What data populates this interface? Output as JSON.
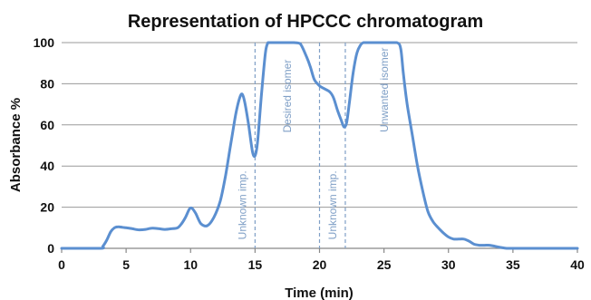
{
  "chart_data": {
    "type": "line",
    "title": "Representation of HPCCC chromatogram",
    "xlabel": "Time (min)",
    "ylabel": "Absorbance %",
    "xlim": [
      0,
      40
    ],
    "ylim": [
      0,
      100
    ],
    "x_ticks": [
      0,
      5,
      10,
      15,
      20,
      25,
      30,
      35,
      40
    ],
    "y_ticks": [
      0,
      20,
      40,
      60,
      80,
      100
    ],
    "grid": "horizontal",
    "colors": {
      "series": "#5b8fd0",
      "annotation": "#7f9fc6"
    },
    "series": [
      {
        "x": [
          0,
          3,
          3.2,
          3.5,
          3.8,
          4.1,
          4.4,
          4.7,
          5,
          5.5,
          6,
          6.5,
          7,
          7.5,
          8,
          8.5,
          9,
          9.3,
          9.6,
          9.9,
          10.1,
          10.4,
          10.8,
          11.3,
          11.8,
          12.3,
          12.7,
          13.1,
          13.5,
          13.8,
          14,
          14.2,
          14.5,
          14.8,
          15,
          15.2,
          15.5,
          15.8,
          16,
          16.1,
          16.5,
          17,
          17.5,
          18,
          18.5,
          19,
          19.3,
          19.6,
          20,
          20.4,
          20.8,
          21.1,
          21.4,
          21.7,
          21.9,
          22.1,
          22.3,
          22.6,
          22.9,
          23.2,
          23.4,
          23.6,
          23.9,
          24.2,
          25,
          26,
          26.3,
          26.5,
          26.8,
          27.2,
          27.6,
          28,
          28.4,
          28.8,
          29.2,
          29.6,
          30,
          30.4,
          30.8,
          31.2,
          31.6,
          32,
          32.4,
          32.8,
          33.2,
          33.6,
          34,
          34.5,
          35,
          35.5,
          40
        ],
        "y": [
          0,
          0,
          1,
          4,
          8,
          10,
          10.5,
          10.2,
          10,
          9.5,
          9,
          9.2,
          9.8,
          9.6,
          9.2,
          9.5,
          10,
          12,
          15,
          19,
          19.5,
          17,
          12,
          11,
          15,
          23,
          35,
          50,
          65,
          73,
          75,
          71,
          60,
          47,
          45,
          52,
          75,
          95,
          100,
          100,
          100,
          100,
          100,
          100,
          99.5,
          93,
          88,
          82,
          79,
          77.5,
          76,
          73,
          67,
          62,
          59,
          61,
          70,
          85,
          95,
          99,
          100,
          100,
          100,
          100,
          100,
          100,
          97,
          85,
          70,
          55,
          40,
          28,
          18,
          13,
          10,
          7.5,
          5.5,
          4.5,
          4.5,
          4.5,
          3.5,
          2,
          1.5,
          1.5,
          1.5,
          1,
          0.5,
          0,
          0,
          0,
          0
        ]
      }
    ],
    "dividers": [
      15,
      20,
      22
    ],
    "annotations": [
      {
        "text": "Unknown imp.",
        "x": 14.3,
        "y": 21
      },
      {
        "text": "Desired isomer",
        "x": 17.8,
        "y": 74
      },
      {
        "text": "Unknown imp.",
        "x": 21.3,
        "y": 21
      },
      {
        "text": "Unwanted isomer",
        "x": 25.3,
        "y": 77
      }
    ]
  }
}
